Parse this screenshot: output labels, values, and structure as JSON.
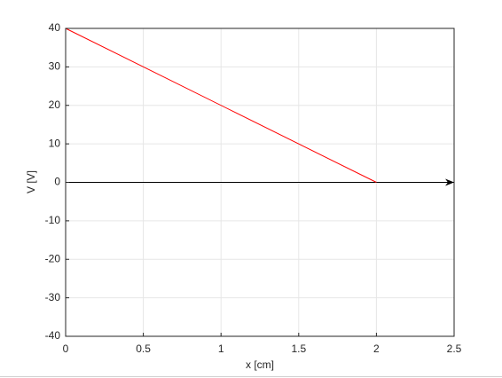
{
  "chart_data": {
    "type": "line",
    "xlabel": "x [cm]",
    "ylabel": "V [V]",
    "x": [
      0,
      2
    ],
    "series": [
      {
        "color": "#ff0000",
        "values": [
          40,
          0
        ]
      }
    ],
    "xlim": [
      0,
      2.5
    ],
    "xticks": [
      0,
      0.5,
      1,
      1.5,
      2,
      2.5
    ],
    "ylim": [
      -40,
      40
    ],
    "yticks": [
      -40,
      -30,
      -20,
      -10,
      0,
      10,
      20,
      30,
      40
    ],
    "grid": true
  }
}
